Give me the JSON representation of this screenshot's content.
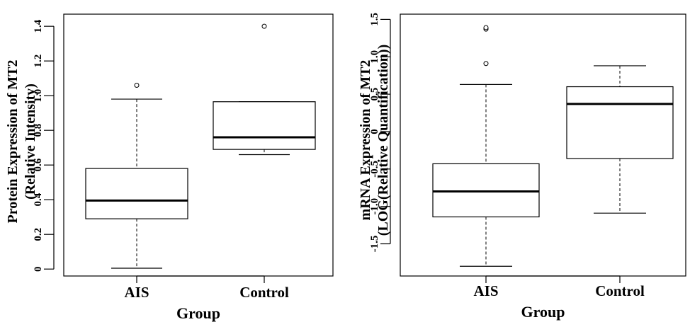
{
  "chart_data": [
    {
      "type": "boxplot",
      "categories": [
        "AIS",
        "Control"
      ],
      "xlabel": "Group",
      "ylabel_lines": [
        "Protein Expression of MT2",
        "(Relative Intensity)"
      ],
      "yticks": [
        "0",
        "0.2",
        "0.4",
        "0.6",
        "0.8",
        "1.0",
        "1.2",
        "1.4"
      ],
      "ylim": [
        -0.04,
        1.47
      ],
      "boxes": [
        {
          "category": "AIS",
          "whisker_low": 0.005,
          "q1": 0.29,
          "median": 0.395,
          "q3": 0.58,
          "whisker_high": 0.98,
          "outliers": [
            1.06
          ]
        },
        {
          "category": "Control",
          "whisker_low": 0.66,
          "q1": 0.69,
          "median": 0.76,
          "q3": 0.965,
          "whisker_high": 0.965,
          "outliers": [
            1.4
          ]
        }
      ]
    },
    {
      "type": "boxplot",
      "categories": [
        "AIS",
        "Control"
      ],
      "xlabel": "Group",
      "ylabel_lines": [
        "mRNA Expression of MT2",
        "(LOG(Relative Quantification))"
      ],
      "yticks": [
        "-1.5",
        "-1.0",
        "-0.5",
        "0",
        "0.5",
        "1.0",
        "1.5"
      ],
      "ylim": [
        -1.93,
        1.57
      ],
      "boxes": [
        {
          "category": "AIS",
          "whisker_low": -1.8,
          "q1": -1.14,
          "median": -0.8,
          "q3": -0.43,
          "whisker_high": 0.63,
          "outliers": [
            0.91,
            1.37,
            1.39
          ]
        },
        {
          "category": "Control",
          "whisker_low": -1.09,
          "q1": -0.36,
          "median": 0.37,
          "q3": 0.6,
          "whisker_high": 0.88,
          "outliers": []
        }
      ]
    }
  ]
}
